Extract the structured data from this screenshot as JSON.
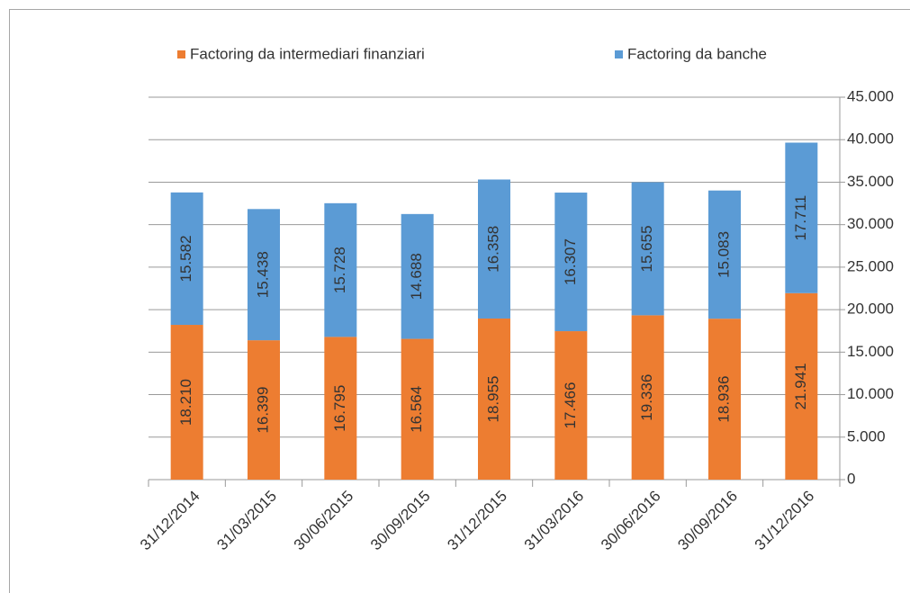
{
  "chart_data": {
    "type": "stacked_bar",
    "categories": [
      "31/12/2014",
      "31/03/2015",
      "30/06/2015",
      "30/09/2015",
      "31/12/2015",
      "31/03/2016",
      "30/06/2016",
      "30/09/2016",
      "31/12/2016"
    ],
    "series": [
      {
        "name": "Factoring da intermediari finanziari",
        "color": "#ed7d31",
        "values": [
          18210,
          16399,
          16795,
          16564,
          18955,
          17466,
          19336,
          18936,
          21941
        ],
        "value_labels": [
          "18.210",
          "16.399",
          "16.795",
          "16.564",
          "18.955",
          "17.466",
          "19.336",
          "18.936",
          "21.941"
        ]
      },
      {
        "name": "Factoring da banche",
        "color": "#5b9bd5",
        "values": [
          15582,
          15438,
          15728,
          14688,
          16358,
          16307,
          15655,
          15083,
          17711
        ],
        "value_labels": [
          "15.582",
          "15.438",
          "15.728",
          "14.688",
          "16.358",
          "16.307",
          "15.655",
          "15.083",
          "17.711"
        ]
      }
    ],
    "ylim": [
      0,
      45000
    ],
    "yticks": [
      0,
      {
        "value": 5000,
        "label": "5.000"
      },
      {
        "value": 10000,
        "label": "10.000"
      },
      {
        "value": 15000,
        "label": "15.000"
      },
      {
        "value": 20000,
        "label": "20.000"
      },
      {
        "value": 25000,
        "label": "25.000"
      },
      {
        "value": 30000,
        "label": "30.000"
      },
      {
        "value": 35000,
        "label": "35.000"
      },
      {
        "value": 40000,
        "label": "40.000"
      },
      {
        "value": 45000,
        "label": "45.000"
      }
    ],
    "y_axis_side": "right",
    "grid": true,
    "legend": "top"
  }
}
